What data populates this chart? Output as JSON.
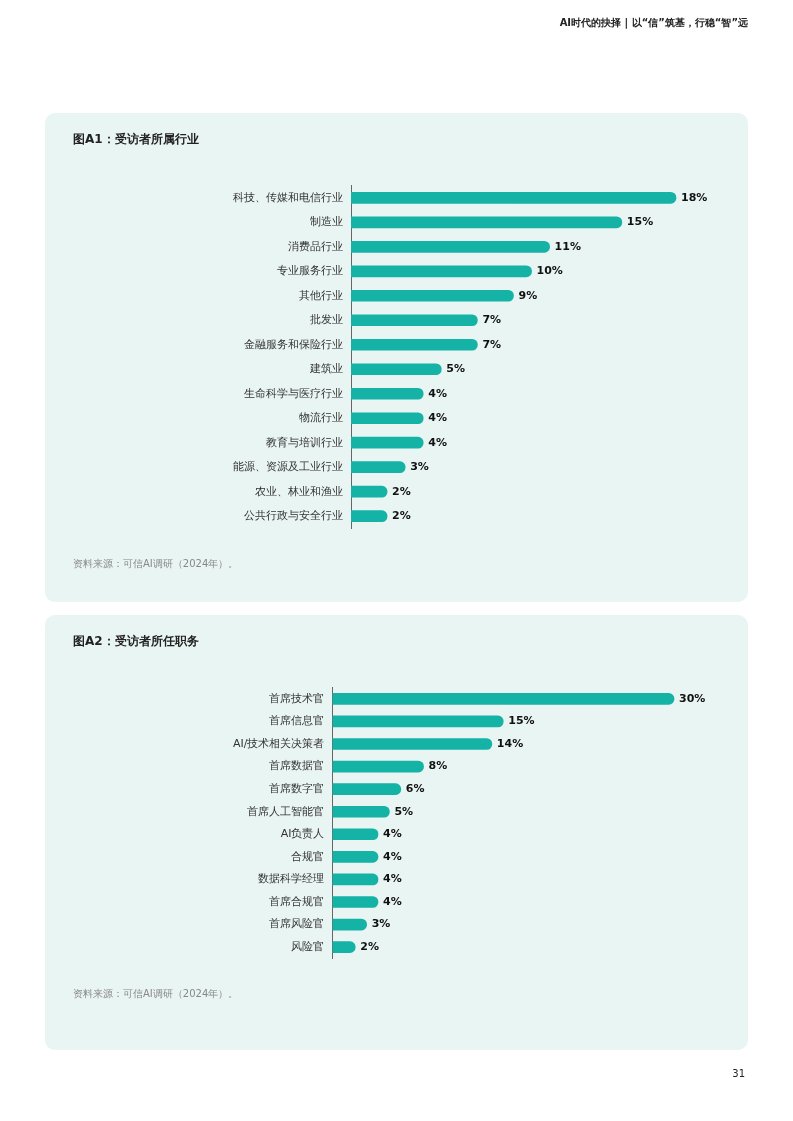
{
  "chart_data": [
    {
      "type": "other",
      "annotations": [
        "AI时代的抉择 | 以“信”筑基，行稳“智”远"
      ]
    },
    {
      "type": "bar",
      "orientation": "horizontal",
      "title": "图A1：受访者所属行业",
      "tick_labels": "y",
      "color": "#14b3a6",
      "categories": [
        "科技、传媒和电信行业",
        "制造业",
        "消费品行业",
        "专业服务行业",
        "其他行业",
        "批发业",
        "金融服务和保险行业",
        "建筑业",
        "生命科学与医疗行业",
        "物流行业",
        "教育与培训行业",
        "能源、资源及工业行业",
        "农业、林业和渔业",
        "公共行政与安全行业"
      ],
      "values": [
        18,
        15,
        11,
        10,
        9,
        7,
        7,
        5,
        4,
        4,
        4,
        3,
        2,
        2
      ],
      "value_labels": [
        "18%",
        "15%",
        "11%",
        "10%",
        "9%",
        "7%",
        "7%",
        "5%",
        "4%",
        "4%",
        "4%",
        "3%",
        "2%",
        "2%"
      ],
      "annotations": [
        "资料来源：可信AI调研（2024年）。"
      ]
    },
    {
      "type": "bar",
      "orientation": "horizontal",
      "title": "图A2：受访者所任职务",
      "tick_labels": "y",
      "color": "#14b3a6",
      "categories": [
        "首席技术官",
        "首席信息官",
        "AI/技术相关决策者",
        "首席数据官",
        "首席数字官",
        "首席人工智能官",
        "AI负责人",
        "合规官",
        "数据科学经理",
        "首席合规官",
        "首席风险官",
        "风险官"
      ],
      "values": [
        30,
        15,
        14,
        8,
        6,
        5,
        4,
        4,
        4,
        4,
        3,
        2
      ],
      "value_labels": [
        "30%",
        "15%",
        "14%",
        "8%",
        "6%",
        "5%",
        "4%",
        "4%",
        "4%",
        "4%",
        "3%",
        "2%"
      ],
      "annotations": [
        "资料来源：可信AI调研（2024年）。"
      ]
    },
    {
      "type": "other",
      "annotations": [
        "31"
      ]
    }
  ]
}
